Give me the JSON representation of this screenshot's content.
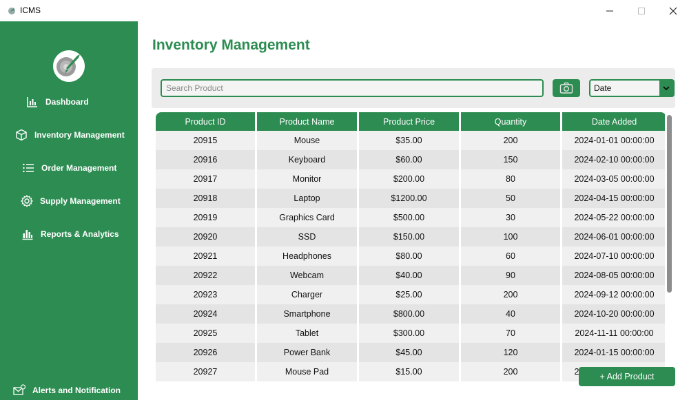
{
  "window": {
    "title": "ICMS"
  },
  "sidebar": {
    "items": [
      {
        "label": "Dashboard",
        "icon": "bar-chart-icon"
      },
      {
        "label": "Inventory Management",
        "icon": "box-icon"
      },
      {
        "label": "Order Management",
        "icon": "list-icon"
      },
      {
        "label": "Supply Management",
        "icon": "gear-icon"
      },
      {
        "label": "Reports & Analytics",
        "icon": "report-chart-icon"
      },
      {
        "label": "Alerts and Notification",
        "icon": "mail-alert-icon"
      }
    ]
  },
  "main": {
    "title": "Inventory Management",
    "search": {
      "placeholder": "Search Product",
      "value": ""
    },
    "sort": {
      "selected": "Date"
    },
    "add_button": "+ Add Product"
  },
  "table": {
    "headers": [
      "Product ID",
      "Product Name",
      "Product Price",
      "Quantity",
      "Date Added"
    ],
    "rows": [
      [
        "20915",
        "Mouse",
        "$35.00",
        "200",
        "2024-01-01 00:00:00"
      ],
      [
        "20916",
        "Keyboard",
        "$60.00",
        "150",
        "2024-02-10 00:00:00"
      ],
      [
        "20917",
        "Monitor",
        "$200.00",
        "80",
        "2024-03-05 00:00:00"
      ],
      [
        "20918",
        "Laptop",
        "$1200.00",
        "50",
        "2024-04-15 00:00:00"
      ],
      [
        "20919",
        "Graphics Card",
        "$500.00",
        "30",
        "2024-05-22 00:00:00"
      ],
      [
        "20920",
        "SSD",
        "$150.00",
        "100",
        "2024-06-01 00:00:00"
      ],
      [
        "20921",
        "Headphones",
        "$80.00",
        "60",
        "2024-07-10 00:00:00"
      ],
      [
        "20922",
        "Webcam",
        "$40.00",
        "90",
        "2024-08-05 00:00:00"
      ],
      [
        "20923",
        "Charger",
        "$25.00",
        "200",
        "2024-09-12 00:00:00"
      ],
      [
        "20924",
        "Smartphone",
        "$800.00",
        "40",
        "2024-10-20 00:00:00"
      ],
      [
        "20925",
        "Tablet",
        "$300.00",
        "70",
        "2024-11-11 00:00:00"
      ],
      [
        "20926",
        "Power Bank",
        "$45.00",
        "120",
        "2024-01-15 00:00:00"
      ],
      [
        "20927",
        "Mouse Pad",
        "$15.00",
        "200",
        "2024-02-15 00:00:00"
      ]
    ]
  },
  "colors": {
    "accent": "#2c8c51",
    "row_light": "#f0f0f0",
    "row_dark": "#e4e4e4"
  }
}
